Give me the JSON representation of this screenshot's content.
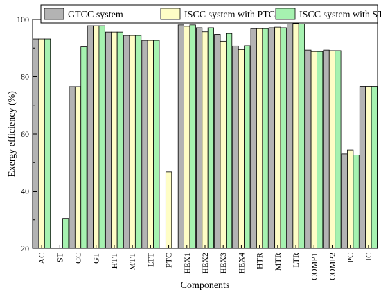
{
  "chart_data": {
    "type": "bar",
    "title": "",
    "xlabel": "Components",
    "ylabel": "Exergy efficiency (%)",
    "ylim": [
      20,
      100
    ],
    "yticks": [
      20,
      40,
      60,
      80,
      100
    ],
    "grid": false,
    "legend_position": "top",
    "categories": [
      "AC",
      "ST",
      "CC",
      "GT",
      "HTT",
      "MTT",
      "LTT",
      "PTC",
      "HEX1",
      "HEX2",
      "HEX3",
      "HEX4",
      "HTR",
      "MTR",
      "LTR",
      "COMP1",
      "COMP2",
      "PC",
      "IC"
    ],
    "series": [
      {
        "name": "GTCC system",
        "color": "#b3b3b3",
        "values": [
          93.2,
          null,
          76.5,
          97.8,
          95.6,
          94.4,
          92.7,
          null,
          98.1,
          97.1,
          94.8,
          90.7,
          96.8,
          97.1,
          98.4,
          89.3,
          89.3,
          53.0,
          76.6
        ]
      },
      {
        "name": "ISCC system with PTC",
        "color": "#fefdc6",
        "values": [
          93.2,
          null,
          76.5,
          97.8,
          95.6,
          94.4,
          92.7,
          46.7,
          97.6,
          95.7,
          92.4,
          89.5,
          96.8,
          97.3,
          98.6,
          88.8,
          89.1,
          54.4,
          76.6
        ]
      },
      {
        "name": "ISCC system with ST",
        "color": "#a6f2b0",
        "values": [
          93.2,
          30.5,
          90.4,
          97.8,
          95.6,
          94.4,
          92.7,
          null,
          98.1,
          97.1,
          95.1,
          90.8,
          96.8,
          97.1,
          98.4,
          88.8,
          89.1,
          52.6,
          76.6
        ]
      }
    ]
  }
}
